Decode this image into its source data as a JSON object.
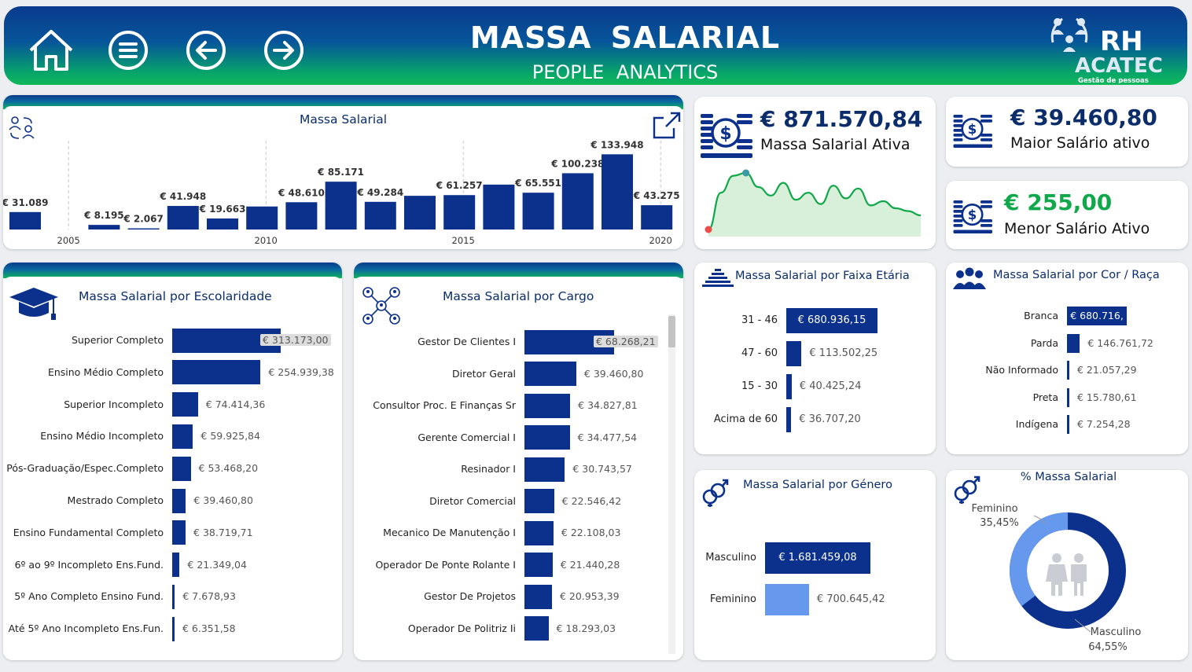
{
  "header": {
    "title": "MASSA  SALARIAL",
    "subtitle": "PEOPLE  ANALYTICS",
    "logo_main": "RH",
    "logo_brand": "ACATEC",
    "logo_tag": "Gestão de pessoas"
  },
  "nav": {
    "home_icon": "home-icon",
    "menu_icon": "menu-icon",
    "back_icon": "arrow-left-icon",
    "forward_icon": "arrow-right-icon"
  },
  "colors": {
    "primary": "#0b318c",
    "light_bar": "#6699ee",
    "accent_green": "#10a84a",
    "area_fill": "#d8efd9"
  },
  "kpis": {
    "massa_ativa": {
      "value": "€ 871.570,84",
      "label": "Massa Salarial Ativa"
    },
    "maior": {
      "value": "€ 39.460,80",
      "label": "Maior Salário ativo"
    },
    "menor": {
      "value": "€ 255,00",
      "label": "Menor Salário Ativo"
    }
  },
  "chart_data": [
    {
      "type": "bar",
      "title": "Massa Salarial",
      "categories": [
        2004,
        2006,
        2007,
        2008,
        2009,
        2010,
        2011,
        2012,
        2013,
        2014,
        2015,
        2016,
        2017,
        2018,
        2019,
        2020
      ],
      "values": [
        31089,
        8195,
        2067,
        41948,
        19663,
        41000,
        48610,
        85171,
        49284,
        60000,
        61257,
        80000,
        65551,
        100238,
        133948,
        43275
      ],
      "labels": [
        "€ 31.089",
        "€ 8.195",
        "€ 2.067",
        "€ 41.948",
        "€ 19.663",
        "",
        "€ 48.610",
        "€ 85.171",
        "€ 49.284",
        "",
        "€ 61.257",
        "",
        "€ 65.551",
        "€ 100.238",
        "€ 133.948",
        "€ 43.275"
      ],
      "x_ticks": [
        "2005",
        "2010",
        "2015",
        "2020"
      ],
      "ylim": [
        0,
        140000
      ]
    },
    {
      "type": "bar",
      "title": "Massa Salarial por Escolaridade",
      "categories": [
        "Superior Completo",
        "Ensino Médio Completo",
        "Superior Incompleto",
        "Ensino Médio Incompleto",
        "Pós-Graduação/Espec.Completo",
        "Mestrado Completo",
        "Ensino Fundamental Completo",
        "6º ao 9º Incompleto Ens.Fund.",
        "5º Ano Completo Ensino Fund.",
        "Até 5º Ano Incompleto Ens.Fun."
      ],
      "values": [
        313173.0,
        254939.38,
        74414.36,
        59925.84,
        53468.2,
        39460.8,
        38719.71,
        21349.04,
        7678.93,
        6351.58
      ],
      "labels": [
        "€ 313.173,00",
        "€ 254.939,38",
        "€ 74.414,36",
        "€ 59.925,84",
        "€ 53.468,20",
        "€ 39.460,80",
        "€ 38.719,71",
        "€ 21.349,04",
        "€ 7.678,93",
        "€ 6.351,58"
      ]
    },
    {
      "type": "bar",
      "title": "Massa Salarial por Cargo",
      "categories": [
        "Gestor De Clientes I",
        "Diretor Geral",
        "Consultor Proc. E Finanças Sr",
        "Gerente Comercial I",
        "Resinador I",
        "Diretor Comercial",
        "Mecanico De Manutenção I",
        "Operador De Ponte Rolante I",
        "Gestor De Projetos",
        "Operador De Politriz Ii"
      ],
      "values": [
        68268.21,
        39460.8,
        34827.81,
        34477.54,
        30743.57,
        22546.42,
        22108.03,
        21440.28,
        20953.39,
        18293.03
      ],
      "labels": [
        "€ 68.268,21",
        "€ 39.460,80",
        "€ 34.827,81",
        "€ 34.477,54",
        "€ 30.743,57",
        "€ 22.546,42",
        "€ 22.108,03",
        "€ 21.440,28",
        "€ 20.953,39",
        "€ 18.293,03"
      ]
    },
    {
      "type": "bar",
      "title": "Massa Salarial por Faixa Etária",
      "categories": [
        "31 - 46",
        "47 - 60",
        "15 - 30",
        "Acima de 60"
      ],
      "values": [
        680936.15,
        113502.25,
        40425.24,
        36707.2
      ],
      "labels": [
        "€ 680.936,15",
        "€ 113.502,25",
        "€ 40.425,24",
        "€ 36.707,20"
      ]
    },
    {
      "type": "bar",
      "title": "Massa Salarial por Cor / Raça",
      "categories": [
        "Branca",
        "Parda",
        "Não Informado",
        "Preta",
        "Indígena"
      ],
      "values": [
        680716.0,
        146761.72,
        21057.29,
        15780.61,
        7254.28
      ],
      "labels": [
        "€ 680.716,",
        "€ 146.761,72",
        "€ 21.057,29",
        "€ 15.780,61",
        "€ 7.254,28"
      ]
    },
    {
      "type": "bar",
      "title": "Massa Salarial por Género",
      "categories": [
        "Masculino",
        "Feminino"
      ],
      "values": [
        1681459.08,
        700645.42
      ],
      "labels": [
        "€ 1.681.459,08",
        "€ 700.645,42"
      ]
    },
    {
      "type": "pie",
      "title": "% Massa Salarial",
      "categories": [
        "Feminino",
        "Masculino"
      ],
      "values": [
        35.45,
        64.55
      ],
      "labels": [
        "35,45%",
        "64,55%"
      ]
    },
    {
      "type": "area",
      "title": "Massa Salarial Ativa trend",
      "values": [
        10,
        62,
        86,
        90,
        70,
        58,
        76,
        52,
        62,
        46,
        72,
        54,
        68,
        44,
        50,
        40,
        36,
        30
      ]
    }
  ]
}
